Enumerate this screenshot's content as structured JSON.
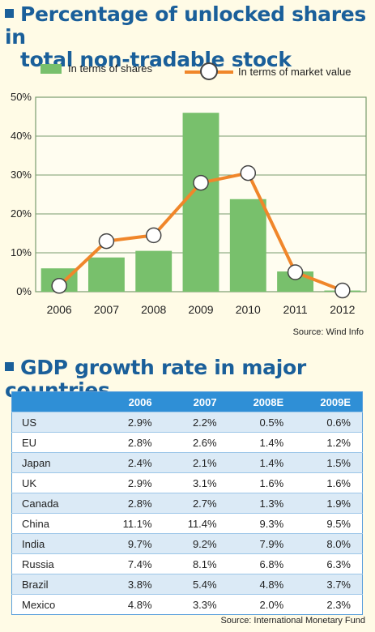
{
  "chart_title": {
    "line1": "Percentage of unlocked shares in",
    "line2": "total non-tradable stock"
  },
  "legend": {
    "bars": "In terms of shares",
    "line": "In terms of market value"
  },
  "chart_data": {
    "type": "bar",
    "categories": [
      "2006",
      "2007",
      "2008",
      "2009",
      "2010",
      "2011",
      "2012"
    ],
    "series": [
      {
        "name": "In terms of shares",
        "type": "bar",
        "values": [
          6,
          8.8,
          10.5,
          46,
          23.8,
          5.2,
          0.3
        ]
      },
      {
        "name": "In terms of market value",
        "type": "line",
        "values": [
          1.5,
          13,
          14.5,
          28,
          30.5,
          5,
          0.3
        ]
      }
    ],
    "ylim": [
      0,
      50
    ],
    "yticks": [
      "0%",
      "10%",
      "20%",
      "30%",
      "40%",
      "50%"
    ],
    "colors": {
      "bar": "#78c06c",
      "line": "#f0862a",
      "grid": "#7a9c6e"
    }
  },
  "source1": "Source: Wind Info",
  "table_title": "GDP growth rate in major countries",
  "table": {
    "headers": [
      "",
      "2006",
      "2007",
      "2008E",
      "2009E"
    ],
    "rows": [
      [
        "US",
        "2.9%",
        "2.2%",
        "0.5%",
        "0.6%"
      ],
      [
        "EU",
        "2.8%",
        "2.6%",
        "1.4%",
        "1.2%"
      ],
      [
        "Japan",
        "2.4%",
        "2.1%",
        "1.4%",
        "1.5%"
      ],
      [
        "UK",
        "2.9%",
        "3.1%",
        "1.6%",
        "1.6%"
      ],
      [
        "Canada",
        "2.8%",
        "2.7%",
        "1.3%",
        "1.9%"
      ],
      [
        "China",
        "11.1%",
        "11.4%",
        "9.3%",
        "9.5%"
      ],
      [
        "India",
        "9.7%",
        "9.2%",
        "7.9%",
        "8.0%"
      ],
      [
        "Russia",
        "7.4%",
        "8.1%",
        "6.8%",
        "6.3%"
      ],
      [
        "Brazil",
        "3.8%",
        "5.4%",
        "4.8%",
        "3.7%"
      ],
      [
        "Mexico",
        "4.8%",
        "3.3%",
        "2.0%",
        "2.3%"
      ]
    ]
  },
  "source2": "Source: International Monetary Fund"
}
